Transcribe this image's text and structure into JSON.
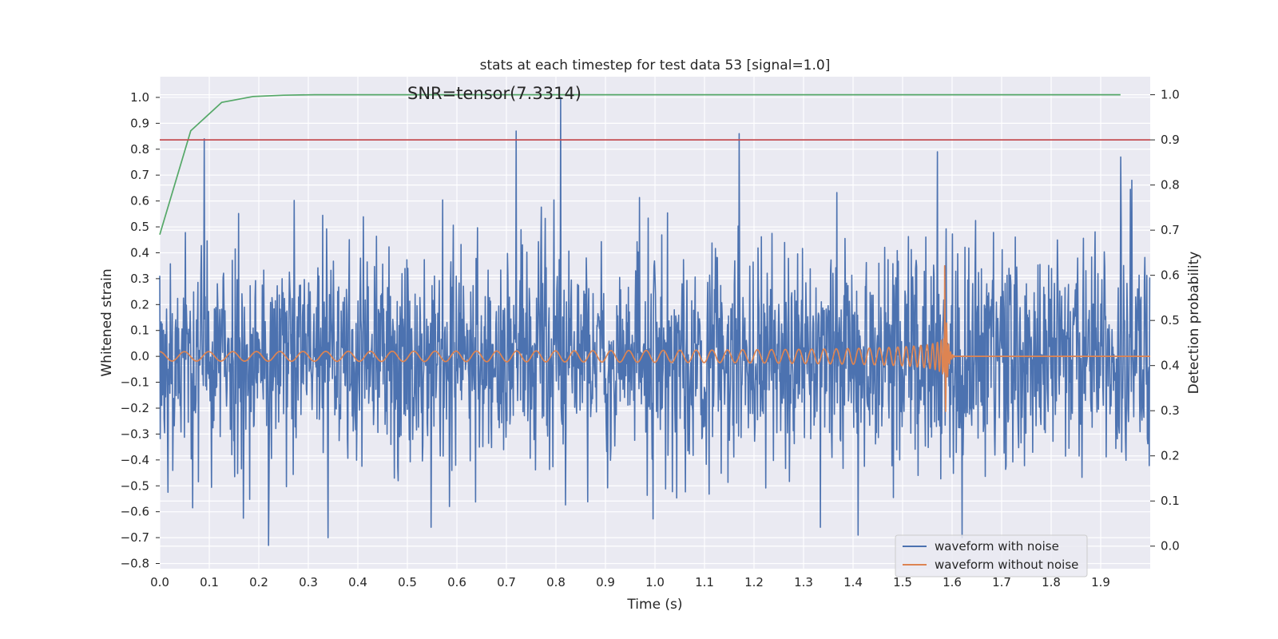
{
  "chart_data": {
    "type": "line",
    "title": "stats at each timestep for test data 53 [signal=1.0]",
    "annotation": "SNR=tensor(7.3314)",
    "xlabel": "Time (s)",
    "ylabel": "Whitened strain",
    "y2label": "Detection probability",
    "xlim": [
      0.0,
      2.0
    ],
    "ylim": [
      -0.82,
      1.08
    ],
    "y2lim": [
      -0.05,
      1.04
    ],
    "xticks": [
      "0.0",
      "0.1",
      "0.2",
      "0.3",
      "0.4",
      "0.5",
      "0.6",
      "0.7",
      "0.8",
      "0.9",
      "1.0",
      "1.1",
      "1.2",
      "1.3",
      "1.4",
      "1.5",
      "1.6",
      "1.7",
      "1.8",
      "1.9"
    ],
    "yticks": [
      "−0.8",
      "−0.7",
      "−0.6",
      "−0.5",
      "−0.4",
      "−0.3",
      "−0.2",
      "−0.1",
      "0.0",
      "0.1",
      "0.2",
      "0.3",
      "0.4",
      "0.5",
      "0.6",
      "0.7",
      "0.8",
      "0.9",
      "1.0"
    ],
    "y2ticks": [
      "0.0",
      "0.1",
      "0.2",
      "0.3",
      "0.4",
      "0.5",
      "0.6",
      "0.7",
      "0.8",
      "0.9",
      "1.0"
    ],
    "grid": true,
    "legend_position": "lower-right",
    "series": [
      {
        "name": "waveform with noise",
        "axis": "left",
        "color": "#4c72b0",
        "style": "noise",
        "approx_std": 0.22,
        "peaks": [
          {
            "x": 0.09,
            "y": 0.84
          },
          {
            "x": 0.72,
            "y": 0.87
          },
          {
            "x": 0.81,
            "y": 1.0
          },
          {
            "x": 1.17,
            "y": 0.86
          },
          {
            "x": 1.57,
            "y": 0.79
          },
          {
            "x": 1.94,
            "y": 0.77
          },
          {
            "x": 0.22,
            "y": -0.73
          },
          {
            "x": 0.34,
            "y": -0.7
          },
          {
            "x": 1.41,
            "y": -0.69
          },
          {
            "x": 1.62,
            "y": -0.7
          }
        ]
      },
      {
        "name": "waveform without noise",
        "axis": "left",
        "color": "#dd8452",
        "style": "chirp",
        "merger_time": 1.585,
        "initial_frequency_hz": 20,
        "start_amplitude": 0.018,
        "peak_amplitude": 0.35
      },
      {
        "name": "",
        "axis": "right",
        "color": "#55a868",
        "x": [
          0.0,
          0.0625,
          0.125,
          0.1875,
          0.25,
          0.3125,
          0.375,
          0.5,
          1.0,
          1.5,
          1.94
        ],
        "values": [
          0.69,
          0.92,
          0.983,
          0.996,
          0.999,
          1.0,
          1.0,
          1.0,
          1.0,
          1.0,
          1.0
        ]
      },
      {
        "name": "",
        "axis": "right",
        "color": "#c44e52",
        "style": "threshold",
        "values": [
          0.9
        ]
      }
    ]
  }
}
